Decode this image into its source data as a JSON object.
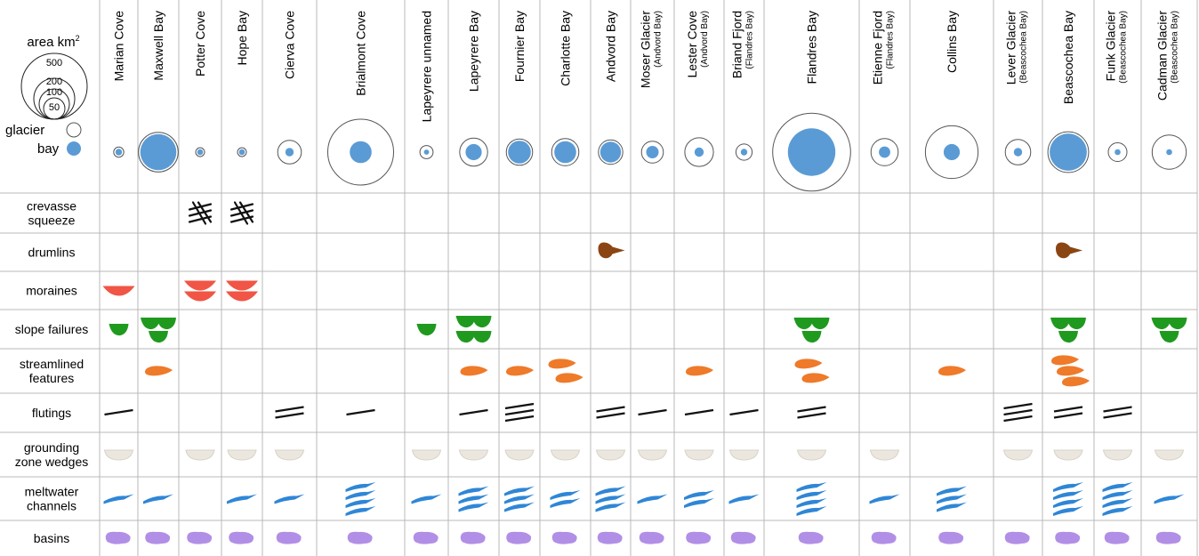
{
  "legend": {
    "area_label": "area km",
    "area_exponent": "2",
    "sizes": [
      "500",
      "200",
      "100",
      "50"
    ],
    "glacier_label": "glacier",
    "bay_label": "bay"
  },
  "colors": {
    "bay": "#5b9bd5",
    "crevasse": "#111111",
    "drumlin": "#8b4513",
    "moraine": "#f05545",
    "slope": "#1f9a1f",
    "streamlined": "#ee7a2a",
    "fluting": "#111111",
    "wedge": "#ebe7df",
    "meltwater": "#2f86d6",
    "basin": "#b28fe6",
    "grid": "#b8b8b8"
  },
  "columns": [
    {
      "name": "Marian Cove",
      "sub": "",
      "glacier_km2": 0,
      "bay_km2": 5
    },
    {
      "name": "Maxwell Bay",
      "sub": "",
      "glacier_km2": 0,
      "bay_km2": 150
    },
    {
      "name": "Potter Cove",
      "sub": "",
      "glacier_km2": 9,
      "bay_km2": 4
    },
    {
      "name": "Hope Bay",
      "sub": "",
      "glacier_km2": 9,
      "bay_km2": 4
    },
    {
      "name": "Cierva Cove",
      "sub": "",
      "glacier_km2": 65,
      "bay_km2": 8
    },
    {
      "name": "Brialmont Cove",
      "sub": "",
      "glacier_km2": 500,
      "bay_km2": 55
    },
    {
      "name": "Lapeyrere unnamed",
      "sub": "",
      "glacier_km2": 20,
      "bay_km2": 3
    },
    {
      "name": "Lapeyrere Bay",
      "sub": "",
      "glacier_km2": 90,
      "bay_km2": 30
    },
    {
      "name": "Fournier Bay",
      "sub": "",
      "glacier_km2": 80,
      "bay_km2": 60
    },
    {
      "name": "Charlotte Bay",
      "sub": "",
      "glacier_km2": 85,
      "bay_km2": 55
    },
    {
      "name": "Andvord Bay",
      "sub": "",
      "glacier_km2": 0,
      "bay_km2": 50
    },
    {
      "name": "Moser Glacier",
      "sub": "(Andvord Bay)",
      "glacier_km2": 55,
      "bay_km2": 18
    },
    {
      "name": "Lester Cove",
      "sub": "(Andvord Bay)",
      "glacier_km2": 95,
      "bay_km2": 10
    },
    {
      "name": "Briand Fjord",
      "sub": "(Flandres Bay)",
      "glacier_km2": 30,
      "bay_km2": 5
    },
    {
      "name": "Flandres Bay",
      "sub": "",
      "glacier_km2": 700,
      "bay_km2": 260
    },
    {
      "name": "Etienne Fjord",
      "sub": "(Flandres Bay)",
      "glacier_km2": 85,
      "bay_km2": 15
    },
    {
      "name": "Collins Bay",
      "sub": "",
      "glacier_km2": 320,
      "bay_km2": 30
    },
    {
      "name": "Lever Glacier",
      "sub": "(Beascochea Bay)",
      "glacier_km2": 75,
      "bay_km2": 8
    },
    {
      "name": "Beascochea Bay",
      "sub": "",
      "glacier_km2": 0,
      "bay_km2": 160
    },
    {
      "name": "Funk Glacier",
      "sub": "(Beascochea Bay)",
      "glacier_km2": 40,
      "bay_km2": 4
    },
    {
      "name": "Cadman Glacier",
      "sub": "(Beascochea Bay)",
      "glacier_km2": 135,
      "bay_km2": 4
    }
  ],
  "rows": [
    {
      "key": "crevasse",
      "label": [
        "crevasse",
        "squeeze"
      ],
      "counts": [
        0,
        0,
        1,
        1,
        0,
        0,
        0,
        0,
        0,
        0,
        0,
        0,
        0,
        0,
        0,
        0,
        0,
        0,
        0,
        0,
        0
      ]
    },
    {
      "key": "drumlin",
      "label": [
        "drumlins"
      ],
      "counts": [
        0,
        0,
        0,
        0,
        0,
        0,
        0,
        0,
        0,
        0,
        1,
        0,
        0,
        0,
        0,
        0,
        0,
        0,
        1,
        0,
        0
      ]
    },
    {
      "key": "moraine",
      "label": [
        "moraines"
      ],
      "counts": [
        1,
        0,
        2,
        2,
        0,
        0,
        0,
        0,
        0,
        0,
        0,
        0,
        0,
        0,
        0,
        0,
        0,
        0,
        0,
        0,
        0
      ]
    },
    {
      "key": "slope",
      "label": [
        "slope failures"
      ],
      "counts": [
        1,
        3,
        0,
        0,
        0,
        0,
        1,
        4,
        0,
        0,
        0,
        0,
        0,
        0,
        3,
        0,
        0,
        0,
        3,
        0,
        3
      ]
    },
    {
      "key": "streamlined",
      "label": [
        "streamlined",
        "features"
      ],
      "counts": [
        0,
        1,
        0,
        0,
        0,
        0,
        0,
        1,
        1,
        2,
        0,
        0,
        1,
        0,
        2,
        0,
        1,
        0,
        3,
        0,
        0
      ]
    },
    {
      "key": "fluting",
      "label": [
        "flutings"
      ],
      "counts": [
        1,
        0,
        0,
        0,
        2,
        1,
        0,
        1,
        3,
        0,
        2,
        1,
        1,
        1,
        2,
        0,
        0,
        3,
        2,
        2,
        0
      ]
    },
    {
      "key": "wedge",
      "label": [
        "grounding",
        "zone wedges"
      ],
      "counts": [
        1,
        0,
        1,
        1,
        1,
        0,
        1,
        1,
        1,
        1,
        1,
        1,
        1,
        1,
        1,
        1,
        0,
        1,
        1,
        1,
        1
      ]
    },
    {
      "key": "meltwater",
      "label": [
        "meltwater",
        "channels"
      ],
      "counts": [
        1,
        1,
        0,
        1,
        1,
        4,
        1,
        3,
        3,
        2,
        3,
        1,
        2,
        1,
        4,
        1,
        3,
        0,
        4,
        4,
        1
      ]
    },
    {
      "key": "basin",
      "label": [
        "basins"
      ],
      "counts": [
        1,
        1,
        1,
        1,
        1,
        1,
        1,
        1,
        1,
        1,
        1,
        1,
        1,
        1,
        1,
        1,
        1,
        1,
        1,
        1,
        1
      ]
    }
  ]
}
